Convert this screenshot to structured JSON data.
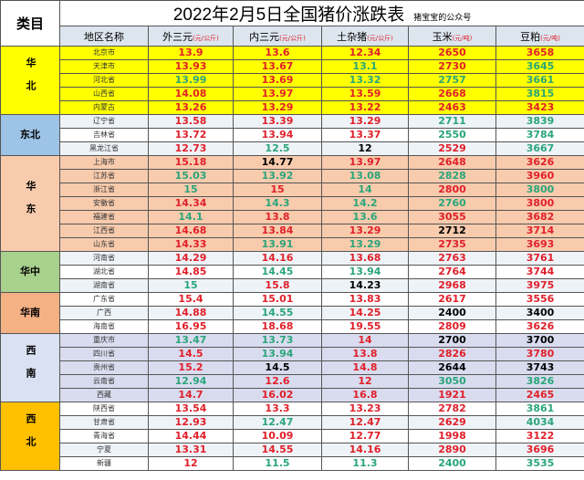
{
  "title": "2022年2月5日全国猪价涨跌表",
  "subtitle": "猪宝宝的公众号",
  "header": {
    "category": "类目",
    "region": "地区名称",
    "cols": [
      {
        "name": "外三元",
        "unit": "(元/公斤)"
      },
      {
        "name": "内三元",
        "unit": "(元/公斤)"
      },
      {
        "name": "土杂猪",
        "unit": "(元/公斤)"
      },
      {
        "name": "玉米",
        "unit": "(元/吨)"
      },
      {
        "name": "豆粕",
        "unit": "(元/吨)"
      }
    ]
  },
  "colors": {
    "up": "#e0202a",
    "down": "#2aa57a",
    "flat": "#000000"
  },
  "groups": [
    {
      "name": "华北",
      "bg": "#ffff00",
      "rowbg": [
        "#ffff00",
        "#ffff00"
      ],
      "rows": [
        [
          "北京市",
          "13.9:r",
          "13.6:r",
          "12.34:r",
          "2650:r",
          "3658:r"
        ],
        [
          "天津市",
          "13.93:r",
          "13.67:r",
          "13.1:g",
          "2730:r",
          "3645:g"
        ],
        [
          "河北省",
          "13.99:g",
          "13.69:r",
          "13.32:g",
          "2757:g",
          "3661:g"
        ],
        [
          "山西省",
          "14.08:r",
          "13.97:r",
          "13.59:r",
          "2668:r",
          "3815:g"
        ],
        [
          "内蒙古",
          "13.26:r",
          "13.29:r",
          "13.22:r",
          "2463:r",
          "3423:r"
        ]
      ]
    },
    {
      "name": "东北",
      "bg": "#9dc3e6",
      "rowbg": [
        "#eef3f8",
        "#ffffff"
      ],
      "rows": [
        [
          "辽宁省",
          "13.58:r",
          "13.39:r",
          "13.29:r",
          "2711:g",
          "3839:g"
        ],
        [
          "吉林省",
          "13.72:r",
          "13.94:r",
          "13.37:r",
          "2550:g",
          "3784:g"
        ],
        [
          "黑龙江省",
          "12.73:r",
          "12.5:g",
          "12:k",
          "2529:r",
          "3667:g"
        ]
      ]
    },
    {
      "name": "华东",
      "bg": "#f8cbad",
      "rowbg": [
        "#f8cbad",
        "#f8cbad"
      ],
      "rows": [
        [
          "上海市",
          "15.18:r",
          "14.77:k",
          "13.97:r",
          "2648:r",
          "3626:r"
        ],
        [
          "江苏省",
          "15.03:g",
          "13.92:g",
          "13.08:g",
          "2828:g",
          "3960:r"
        ],
        [
          "浙江省",
          "15:g",
          "15:r",
          "14:g",
          "2800:r",
          "3800:g"
        ],
        [
          "安徽省",
          "14.34:r",
          "14.3:g",
          "14.2:g",
          "2760:g",
          "3800:r"
        ],
        [
          "福建省",
          "14.1:g",
          "13.8:r",
          "13.6:g",
          "3055:r",
          "3682:r"
        ],
        [
          "江西省",
          "14.68:r",
          "13.84:r",
          "13.29:r",
          "2712:k",
          "3714:r"
        ],
        [
          "山东省",
          "14.33:r",
          "13.91:g",
          "13.29:g",
          "2735:r",
          "3693:r"
        ]
      ]
    },
    {
      "name": "华中",
      "bg": "#a9d18e",
      "rowbg": [
        "#eef3f8",
        "#ffffff"
      ],
      "rows": [
        [
          "河南省",
          "14.29:r",
          "14.16:r",
          "13.68:r",
          "2763:r",
          "3761:r"
        ],
        [
          "湖北省",
          "14.85:r",
          "14.45:g",
          "13.94:g",
          "2764:r",
          "3744:r"
        ],
        [
          "湖南省",
          "15:g",
          "15.8:r",
          "14.23:k",
          "2968:r",
          "3975:r"
        ]
      ]
    },
    {
      "name": "华南",
      "bg": "#f4b183",
      "rowbg": [
        "#ffffff",
        "#eef3f8"
      ],
      "rows": [
        [
          "广东省",
          "15.4:r",
          "15.01:r",
          "13.83:r",
          "2617:r",
          "3556:r"
        ],
        [
          "广西",
          "14.88:r",
          "14.55:g",
          "14.25:r",
          "2400:k",
          "3400:k"
        ],
        [
          "海南省",
          "16.95:r",
          "18.68:r",
          "19.55:r",
          "2809:r",
          "3626:r"
        ]
      ]
    },
    {
      "name": "西南",
      "bg": "#d9e1f2",
      "rowbg": [
        "#d9dcef",
        "#d9dcef"
      ],
      "rows": [
        [
          "重庆市",
          "13.47:g",
          "13.73:g",
          "14:r",
          "2700:k",
          "3700:k"
        ],
        [
          "四川省",
          "14.5:r",
          "13.94:g",
          "13.8:r",
          "2826:r",
          "3780:r"
        ],
        [
          "贵州省",
          "15.2:r",
          "14.5:k",
          "14.8:r",
          "2644:k",
          "3743:k"
        ],
        [
          "云南省",
          "12.94:g",
          "12.6:r",
          "12:r",
          "3050:g",
          "3826:g"
        ],
        [
          "西藏",
          "14.7:r",
          "16.02:r",
          "16.8:r",
          "1921:r",
          "2465:r"
        ]
      ]
    },
    {
      "name": "西北",
      "bg": "#ffc000",
      "rowbg": [
        "#ffffff",
        "#eef3f8"
      ],
      "rows": [
        [
          "陕西省",
          "13.54:r",
          "13.3:r",
          "13.23:r",
          "2782:r",
          "3861:g"
        ],
        [
          "甘肃省",
          "12.93:r",
          "12.47:g",
          "12.47:r",
          "2629:r",
          "4034:g"
        ],
        [
          "青海省",
          "14.44:r",
          "10.09:r",
          "12.77:r",
          "1998:r",
          "3122:r"
        ],
        [
          "宁夏",
          "13.31:r",
          "14.55:r",
          "14.16:r",
          "2890:r",
          "3696:r"
        ],
        [
          "新疆",
          "12:r",
          "11.5:g",
          "11.3:g",
          "2400:g",
          "3535:g"
        ]
      ]
    }
  ]
}
